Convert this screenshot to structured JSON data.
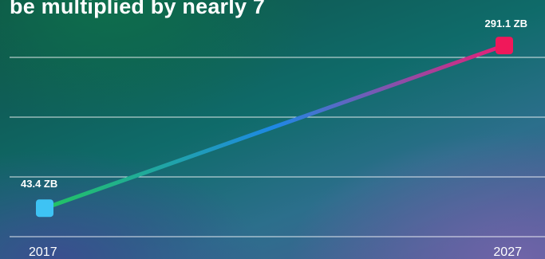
{
  "chart_data": {
    "type": "line",
    "title": "be multiplied by nearly 7",
    "xlabel": "",
    "ylabel": "",
    "categories": [
      "2017",
      "2027"
    ],
    "series": [
      {
        "values": [
          43.4,
          291.1
        ],
        "data_labels": [
          "43.4 ZB",
          "291.1 ZB"
        ],
        "gradient": [
          "#22c55e",
          "#1e88e5",
          "#ec1c73"
        ],
        "start_marker_color": "#3ec3f4",
        "end_marker_color": "#f0185a"
      }
    ],
    "ylim": [
      0,
      330
    ],
    "grid": true,
    "gridline_count": 4
  }
}
